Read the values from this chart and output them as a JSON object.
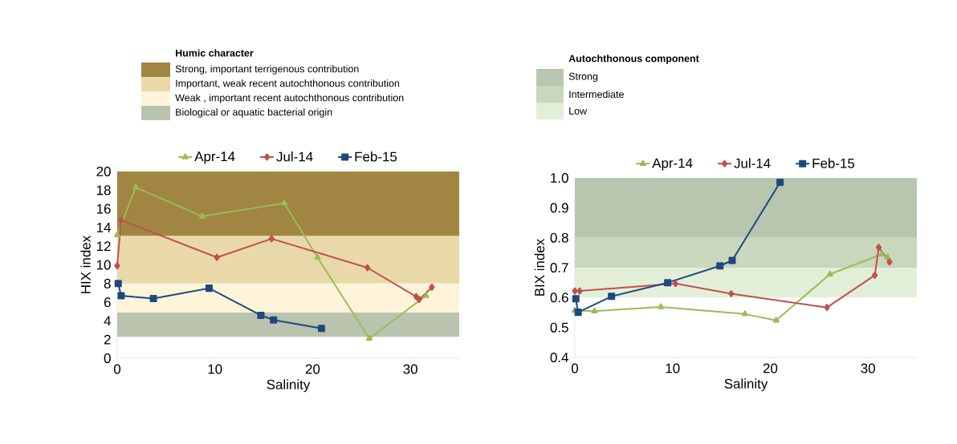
{
  "chart_data": [
    {
      "type": "line",
      "xlabel": "Salinity",
      "ylabel": "HIX index",
      "xlim": [
        0,
        35
      ],
      "ylim": [
        0,
        20
      ],
      "xticks": [
        0,
        10,
        20,
        30
      ],
      "yticks": [
        0,
        2,
        4,
        6,
        8,
        10,
        12,
        14,
        16,
        18,
        20
      ],
      "legend": "top",
      "legend_title": "Humic character",
      "series": [
        {
          "name": "Apr-14",
          "color": "#9bbb59",
          "marker": "triangle",
          "x": [
            0,
            1.9,
            8.7,
            17.1,
            20.5,
            25.8,
            31.6
          ],
          "values": [
            13.2,
            18.3,
            15.2,
            16.6,
            10.8,
            2.1,
            6.7
          ]
        },
        {
          "name": "Jul-14",
          "color": "#c0504d",
          "marker": "diamond",
          "x": [
            0,
            0.4,
            10.2,
            15.8,
            25.6,
            30.6,
            30.9,
            32.2
          ],
          "values": [
            9.9,
            14.8,
            10.8,
            12.8,
            9.7,
            6.6,
            6.3,
            7.6
          ]
        },
        {
          "name": "Feb-15",
          "color": "#1f497d",
          "marker": "square",
          "x": [
            0.1,
            0.4,
            3.7,
            9.4,
            14.7,
            16.0,
            20.9
          ],
          "values": [
            8.0,
            6.7,
            6.4,
            7.5,
            4.6,
            4.1,
            3.2
          ]
        }
      ],
      "bands": [
        {
          "axis": "y",
          "from": 13.1,
          "to": 20,
          "label": "Strong, important terrigenous contribution",
          "color": "#a08642"
        },
        {
          "axis": "y",
          "from": 8,
          "to": 13.1,
          "label": "Important, weak recent autochthonous contribution",
          "color": "#e9d9a9"
        },
        {
          "axis": "y",
          "from": 4.9,
          "to": 8,
          "label": "Weak , important recent autochthonous contribution",
          "color": "#fdf4da"
        },
        {
          "axis": "y",
          "from": 2.3,
          "to": 4.9,
          "label": "Biological or aquatic bacterial origin",
          "color": "#b9c3ae"
        }
      ]
    },
    {
      "type": "line",
      "xlabel": "Salinity",
      "ylabel": "BIX index",
      "xlim": [
        0,
        35
      ],
      "ylim": [
        0.4,
        1.0
      ],
      "xticks": [
        0,
        10,
        20,
        30
      ],
      "yticks": [
        0.4,
        0.5,
        0.6,
        0.7,
        0.8,
        0.9,
        {
          "value": 1.0,
          "label": "1.0"
        }
      ],
      "legend": "top",
      "legend_title": "Autochthonous component",
      "series": [
        {
          "name": "Apr-14",
          "color": "#9bbb59",
          "marker": "triangle",
          "x": [
            0,
            2.0,
            8.8,
            17.4,
            20.6,
            26.1,
            31.4,
            32.0
          ],
          "values": [
            0.557,
            0.555,
            0.569,
            0.545,
            0.524,
            0.678,
            0.745,
            0.735
          ]
        },
        {
          "name": "Jul-14",
          "color": "#c0504d",
          "marker": "diamond",
          "x": [
            0,
            0.5,
            10.3,
            16.0,
            25.8,
            30.7,
            31.1,
            32.2
          ],
          "values": [
            0.622,
            0.622,
            0.647,
            0.613,
            0.567,
            0.675,
            0.768,
            0.719
          ]
        },
        {
          "name": "Feb-15",
          "color": "#1f497d",
          "marker": "square",
          "x": [
            0.1,
            0.34,
            3.75,
            9.5,
            14.85,
            16.1,
            21.0
          ],
          "values": [
            0.596,
            0.551,
            0.604,
            0.65,
            0.706,
            0.724,
            0.985
          ]
        }
      ],
      "bands": [
        {
          "axis": "y",
          "from": 0.8,
          "to": 1.0,
          "label": "Strong",
          "color": "#b8c6b0"
        },
        {
          "axis": "y",
          "from": 0.7,
          "to": 0.8,
          "label": "Intermediate",
          "color": "#c9d7bd"
        },
        {
          "axis": "y",
          "from": 0.6,
          "to": 0.7,
          "label": "Low",
          "color": "#e2eed8"
        }
      ]
    }
  ]
}
